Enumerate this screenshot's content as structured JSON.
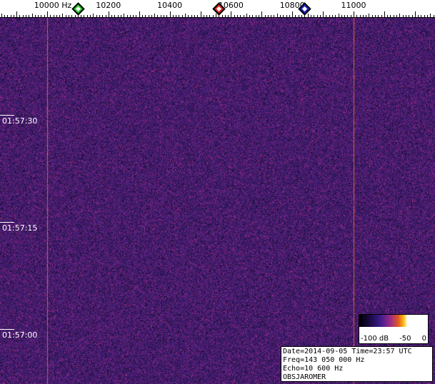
{
  "chart_data": {
    "type": "heatmap",
    "x_unit": "Hz",
    "x_ticks": [
      {
        "value": 10000,
        "label": "10000 Hz"
      },
      {
        "value": 10200,
        "label": "10200"
      },
      {
        "value": 10400,
        "label": "10400"
      },
      {
        "value": 10600,
        "label": "10600"
      },
      {
        "value": 10800,
        "label": "10800"
      },
      {
        "value": 11000,
        "label": "11000"
      }
    ],
    "y_ticks": [
      "01:57:30",
      "01:57:15",
      "01:57:00"
    ],
    "vertical_lines_hz": [
      10000,
      11000
    ],
    "markers": [
      {
        "color": "#22cc22",
        "hz": 10100
      },
      {
        "color": "#dd2222",
        "hz": 10560
      },
      {
        "color": "#2222cc",
        "hz": 10840
      }
    ],
    "colorbar": {
      "labels": [
        "-100 dB",
        "-50",
        "0"
      ]
    }
  },
  "info": {
    "line1": "Date=2014-09-05 Time=23:57 UTC",
    "line2": "Freq=143 050 000 Hz",
    "line3": "Echo=10 600 Hz",
    "line4": "OBSJAROMER"
  }
}
